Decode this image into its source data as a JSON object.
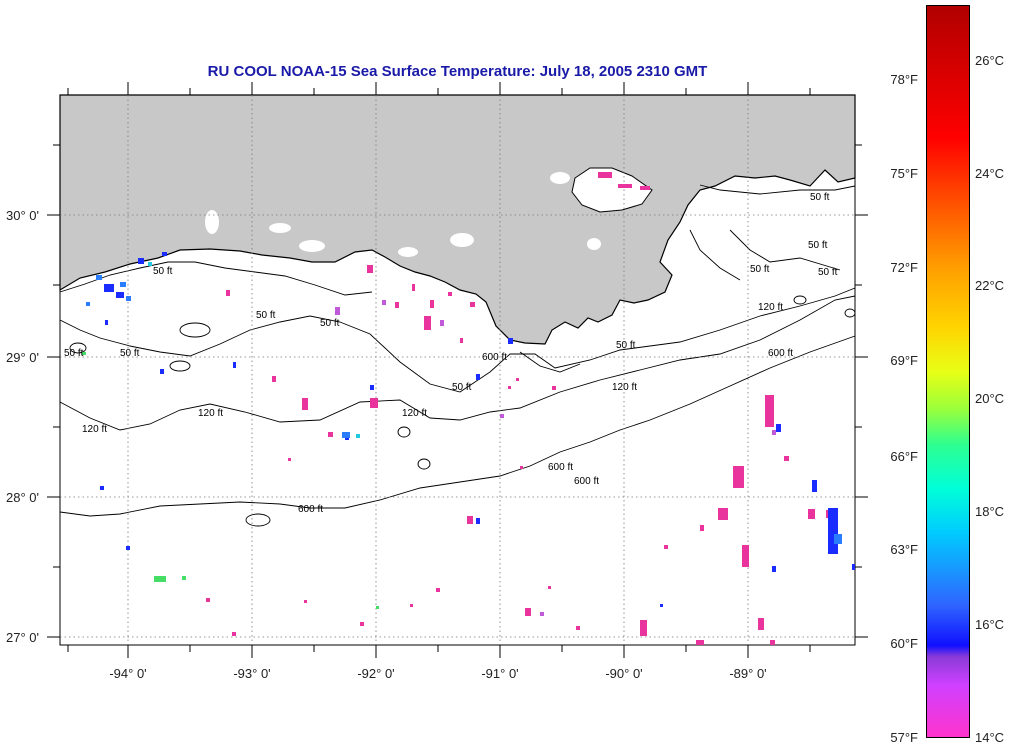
{
  "title": "RU COOL  NOAA-15  Sea Surface Temperature:  July 18, 2005 2310 GMT",
  "map": {
    "lon_labels": [
      "-94° 0'",
      "-93° 0'",
      "-92° 0'",
      "-91° 0'",
      "-90° 0'",
      "-89° 0'"
    ],
    "lat_labels": [
      "30° 0'",
      "29° 0'",
      "28° 0'",
      "27° 0'"
    ],
    "contour_labels": [
      "50 ft",
      "50 ft",
      "50 ft",
      "50 ft",
      "50 ft",
      "50 ft",
      "50 ft",
      "50 ft",
      "50 ft",
      "50 ft",
      "50 ft",
      "120 ft",
      "120 ft",
      "120 ft",
      "120 ft",
      "120 ft",
      "600 ft",
      "600 ft",
      "600 ft",
      "600 ft",
      "600 ft"
    ],
    "land_color": "#c8c8c8",
    "ocean_color": "#ffffff"
  },
  "colorbar": {
    "fahrenheit": [
      "78°F",
      "75°F",
      "72°F",
      "69°F",
      "66°F",
      "63°F",
      "60°F",
      "57°F"
    ],
    "celsius": [
      "26°C",
      "24°C",
      "22°C",
      "20°C",
      "18°C",
      "16°C",
      "14°C"
    ],
    "min_c": 14,
    "max_c": 27.5
  }
}
